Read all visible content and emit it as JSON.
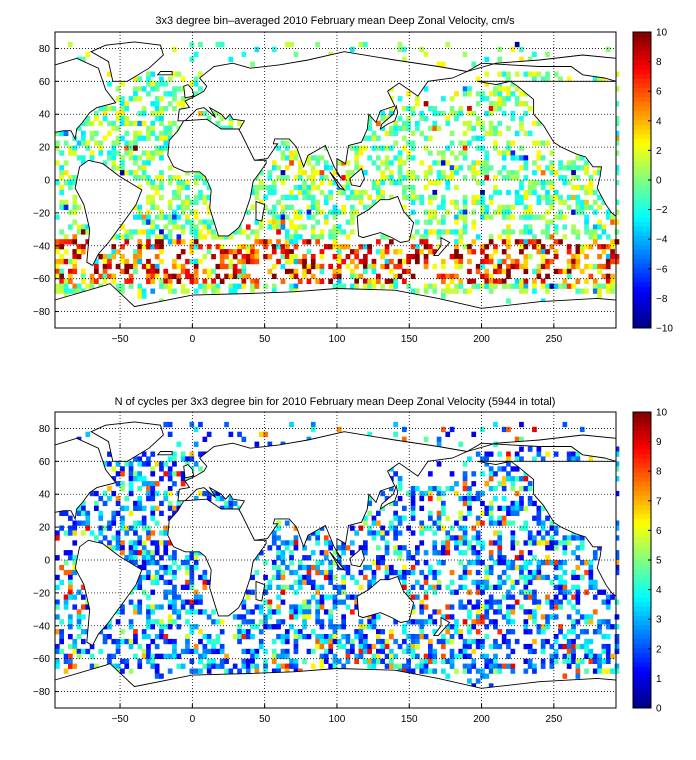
{
  "chart_data": [
    {
      "type": "heatmap",
      "title": "3x3 degree bin–averaged 2010 February mean Deep Zonal Velocity, cm/s",
      "xlim": [
        -95,
        293
      ],
      "ylim": [
        -90,
        90
      ],
      "x_ticks": [
        -50,
        0,
        50,
        100,
        150,
        200,
        250
      ],
      "y_ticks": [
        80,
        60,
        40,
        20,
        0,
        -20,
        -40,
        -60,
        -80
      ],
      "colorbar": {
        "min": -10,
        "max": 10,
        "ticks": [
          10,
          8,
          6,
          4,
          2,
          0,
          -2,
          -4,
          -6,
          -8,
          -10
        ],
        "colormap": "jet"
      },
      "bin_size_deg": 3,
      "grid": true,
      "seed": 11
    },
    {
      "type": "heatmap",
      "title": "N of cycles per 3x3 degree bin for 2010 February mean Deep Zonal Velocity (5944 in total)",
      "xlim": [
        -95,
        293
      ],
      "ylim": [
        -90,
        90
      ],
      "x_ticks": [
        -50,
        0,
        50,
        100,
        150,
        200,
        250
      ],
      "y_ticks": [
        80,
        60,
        40,
        20,
        0,
        -20,
        -40,
        -60,
        -80
      ],
      "colorbar": {
        "min": 0,
        "max": 10,
        "ticks": [
          10,
          9,
          8,
          7,
          6,
          5,
          4,
          3,
          2,
          1,
          0
        ],
        "colormap": "jet"
      },
      "bin_size_deg": 3,
      "grid": true,
      "seed": 29
    }
  ],
  "colors": {
    "frame": "#000000",
    "background": "#ffffff"
  }
}
